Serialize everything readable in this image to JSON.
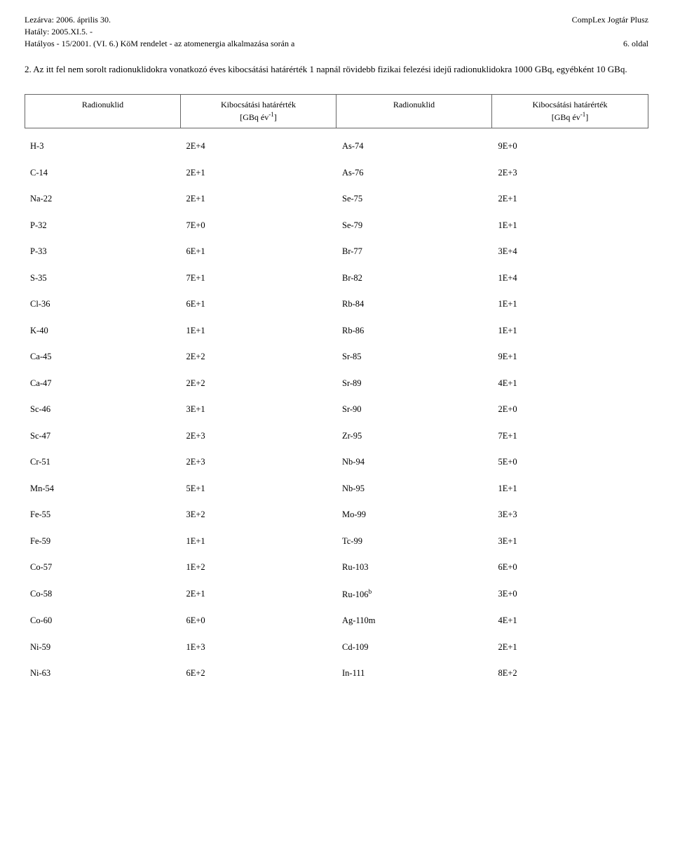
{
  "header": {
    "left_line1": "Lezárva: 2006. április 30.",
    "left_line2": "Hatály: 2005.XI.5. -",
    "left_line3": "Hatályos - 15/2001. (VI. 6.) KöM rendelet - az atomenergia alkalmazása során a",
    "right_line1": "CompLex Jogtár Plusz",
    "right_line2": "6. oldal"
  },
  "paragraph": "2. Az itt fel nem sorolt radionuklidokra vonatkozó éves kibocsátási határérték 1 napnál rövidebb fizikai felezési idejű radionuklidokra 1000 GBq, egyébként 10 GBq.",
  "table": {
    "columns": {
      "radionuklid": "Radionuklid",
      "limit_label": "Kibocsátási határérték",
      "limit_unit_prefix": "[GBq év",
      "limit_unit_exp": "-1",
      "limit_unit_suffix": "]"
    },
    "rows": [
      {
        "n1": "H-3",
        "v1": "2E+4",
        "n2": "As-74",
        "v2": "9E+0"
      },
      {
        "n1": "C-14",
        "v1": "2E+1",
        "n2": "As-76",
        "v2": "2E+3"
      },
      {
        "n1": "Na-22",
        "v1": "2E+1",
        "n2": "Se-75",
        "v2": "2E+1"
      },
      {
        "n1": "P-32",
        "v1": "7E+0",
        "n2": "Se-79",
        "v2": "1E+1"
      },
      {
        "n1": "P-33",
        "v1": "6E+1",
        "n2": "Br-77",
        "v2": "3E+4"
      },
      {
        "n1": "S-35",
        "v1": "7E+1",
        "n2": "Br-82",
        "v2": "1E+4"
      },
      {
        "n1": "Cl-36",
        "v1": "6E+1",
        "n2": "Rb-84",
        "v2": "1E+1"
      },
      {
        "n1": "K-40",
        "v1": "1E+1",
        "n2": "Rb-86",
        "v2": "1E+1"
      },
      {
        "n1": "Ca-45",
        "v1": "2E+2",
        "n2": "Sr-85",
        "v2": "9E+1"
      },
      {
        "n1": "Ca-47",
        "v1": "2E+2",
        "n2": "Sr-89",
        "v2": "4E+1"
      },
      {
        "n1": "Sc-46",
        "v1": "3E+1",
        "n2": "Sr-90",
        "v2": "2E+0"
      },
      {
        "n1": "Sc-47",
        "v1": "2E+3",
        "n2": "Zr-95",
        "v2": "7E+1"
      },
      {
        "n1": "Cr-51",
        "v1": "2E+3",
        "n2": "Nb-94",
        "v2": "5E+0"
      },
      {
        "n1": "Mn-54",
        "v1": "5E+1",
        "n2": "Nb-95",
        "v2": "1E+1"
      },
      {
        "n1": "Fe-55",
        "v1": "3E+2",
        "n2": "Mo-99",
        "v2": "3E+3"
      },
      {
        "n1": "Fe-59",
        "v1": "1E+1",
        "n2": "Tc-99",
        "v2": "3E+1"
      },
      {
        "n1": "Co-57",
        "v1": "1E+2",
        "n2": "Ru-103",
        "v2": "6E+0"
      },
      {
        "n1": "Co-58",
        "v1": "2E+1",
        "n2": "Ru-106",
        "n2_sup": "b",
        "v2": "3E+0"
      },
      {
        "n1": "Co-60",
        "v1": "6E+0",
        "n2": "Ag-110m",
        "v2": "4E+1"
      },
      {
        "n1": "Ni-59",
        "v1": "1E+3",
        "n2": "Cd-109",
        "v2": "2E+1"
      },
      {
        "n1": "Ni-63",
        "v1": "6E+2",
        "n2": "In-111",
        "v2": "8E+2"
      }
    ]
  },
  "style": {
    "background_color": "#ffffff",
    "text_color": "#000000",
    "border_color": "#666666",
    "font_family": "Times New Roman",
    "body_fontsize": 13,
    "header_fontsize": 12,
    "table_fontsize": 12.5
  }
}
